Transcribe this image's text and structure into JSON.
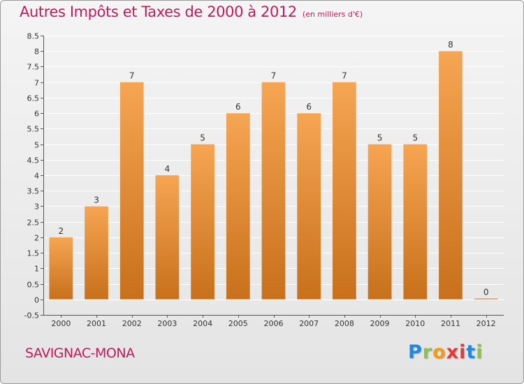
{
  "title": "Autres Impôts et Taxes de 2000 à 2012",
  "subtitle": "(en milliers d'€)",
  "commune": "SAVIGNAC-MONA",
  "logo": {
    "letters": [
      "P",
      "r",
      "o",
      "x",
      "i",
      "t",
      "i"
    ]
  },
  "colors": {
    "title": "#c2185b",
    "bar_top": "#f6a552",
    "bar_bottom": "#c8701c",
    "axis": "#555555",
    "grid": "#ffffff"
  },
  "chart_data": {
    "type": "bar",
    "title": "Autres Impôts et Taxes de 2000 à 2012",
    "subtitle": "(en milliers d'€)",
    "categories": [
      "2000",
      "2001",
      "2002",
      "2003",
      "2004",
      "2005",
      "2006",
      "2007",
      "2008",
      "2009",
      "2010",
      "2011",
      "2012"
    ],
    "values": [
      2,
      3,
      7,
      4,
      5,
      6,
      7,
      6,
      7,
      5,
      5,
      8,
      0
    ],
    "data_labels": [
      "2",
      "3",
      "7",
      "4",
      "5",
      "6",
      "7",
      "6",
      "7",
      "5",
      "5",
      "8",
      "0"
    ],
    "ylim": [
      -0.5,
      8.5
    ],
    "yticks": [
      -0.5,
      0,
      0.5,
      1,
      1.5,
      2,
      2.5,
      3,
      3.5,
      4,
      4.5,
      5,
      5.5,
      6,
      6.5,
      7,
      7.5,
      8,
      8.5
    ],
    "ytick_labels": [
      "-0.5",
      "0",
      "0.5",
      "1",
      "1.5",
      "2",
      "2.5",
      "3",
      "3.5",
      "4",
      "4.5",
      "5",
      "5.5",
      "6",
      "6.5",
      "7",
      "7.5",
      "8",
      "8.5"
    ],
    "grid": true
  }
}
